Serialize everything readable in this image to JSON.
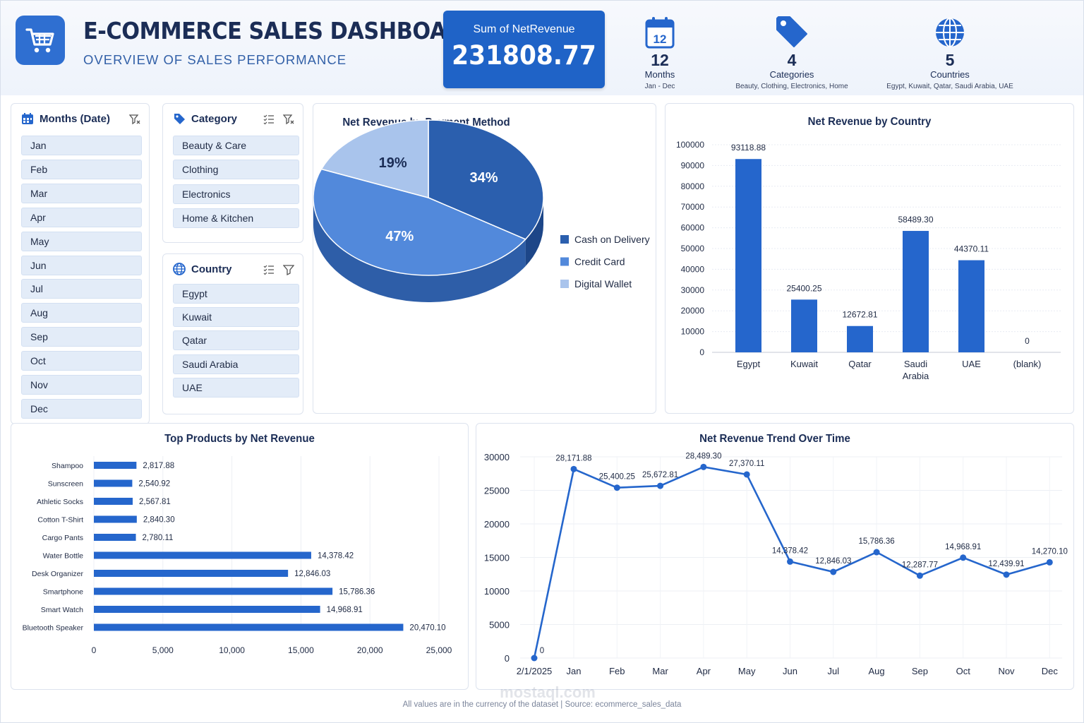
{
  "header": {
    "title": "E-COMMERCE SALES DASHBOARD",
    "subtitle": "OVERVIEW OF SALES PERFORMANCE",
    "logo_icon": "shopping-cart-icon"
  },
  "kpi": {
    "label": "Sum of NetRevenue",
    "value": "231808.77"
  },
  "stats": [
    {
      "icon": "calendar-icon",
      "icon_text": "12",
      "value": "12",
      "name": "Months",
      "sub": "Jan - Dec"
    },
    {
      "icon": "tag-icon",
      "value": "4",
      "name": "Categories",
      "sub": "Beauty, Clothing, Electronics, Home"
    },
    {
      "icon": "globe-icon",
      "value": "5",
      "name": "Countries",
      "sub": "Egypt, Kuwait, Qatar, Saudi Arabia, UAE"
    }
  ],
  "slicers": {
    "months": {
      "title": "Months (Date)",
      "items": [
        "Jan",
        "Feb",
        "Mar",
        "Apr",
        "May",
        "Jun",
        "Jul",
        "Aug",
        "Sep",
        "Oct",
        "Nov",
        "Dec"
      ]
    },
    "category": {
      "title": "Category",
      "items": [
        "Beauty & Care",
        "Clothing",
        "Electronics",
        "Home & Kitchen"
      ]
    },
    "country": {
      "title": "Country",
      "items": [
        "Egypt",
        "Kuwait",
        "Qatar",
        "Saudi Arabia",
        "UAE"
      ]
    }
  },
  "colors": {
    "primary": "#1f63c7",
    "bar": "#2566cc",
    "dark": "#1b2d56",
    "pie_cash": "#2b5fae",
    "pie_card": "#5289db",
    "pie_wallet": "#a9c4ec"
  },
  "chart_data": [
    {
      "type": "pie",
      "title": "Net Revenue by Payment Method",
      "slices": [
        {
          "label": "Cash on Delivery",
          "value": 34,
          "text": "34%"
        },
        {
          "label": "Credit Card",
          "value": 47,
          "text": "47%"
        },
        {
          "label": "Digital Wallet",
          "value": 19,
          "text": "19%"
        }
      ],
      "legend": "right"
    },
    {
      "type": "bar",
      "title": "Net Revenue by Country",
      "categories": [
        "Egypt",
        "Kuwait",
        "Qatar",
        "Saudi Arabia",
        "UAE",
        "(blank)"
      ],
      "values": [
        93118.88,
        25400.25,
        12672.81,
        58489.3,
        44370.11,
        0
      ],
      "labels": [
        "93118.88",
        "25400.25",
        "12672.81",
        "58489.30",
        "44370.11",
        "0"
      ],
      "ylim": [
        0,
        100000
      ],
      "yticks": [
        "0",
        "10000",
        "20000",
        "30000",
        "40000",
        "50000",
        "60000",
        "70000",
        "80000",
        "90000",
        "100000"
      ],
      "grid": true
    },
    {
      "type": "bar",
      "orientation": "horizontal",
      "title": "Top Products by Net Revenue",
      "categories": [
        "Shampoo",
        "Sunscreen",
        "Athletic Socks",
        "Cotton T-Shirt",
        "Cargo Pants",
        "Water Bottle",
        "Desk Organizer",
        "Smartphone",
        "Smart Watch",
        "Bluetooth Speaker"
      ],
      "values": [
        2817.88,
        2540.92,
        2567.81,
        2840.3,
        2780.11,
        14378.42,
        12846.03,
        15786.36,
        14968.91,
        20470.1
      ],
      "labels": [
        "2,817.88",
        "2,540.92",
        "2,567.81",
        "2,840.30",
        "2,780.11",
        "14,378.42",
        "12,846.03",
        "15,786.36",
        "14,968.91",
        "20,470.10"
      ],
      "xlim": [
        0,
        25000
      ],
      "xticks": [
        "0",
        "5,000",
        "10,000",
        "15,000",
        "20,000",
        "25,000"
      ],
      "grid": true
    },
    {
      "type": "line",
      "title": "Net Revenue Trend Over Time",
      "categories": [
        "2/1/2025",
        "Jan",
        "Feb",
        "Mar",
        "Apr",
        "May",
        "Jun",
        "Jul",
        "Aug",
        "Sep",
        "Oct",
        "Nov",
        "Dec"
      ],
      "values": [
        0,
        28171.88,
        25400.25,
        25672.81,
        28489.3,
        27370.11,
        14378.42,
        12846.03,
        15786.36,
        12287.77,
        14968.91,
        12439.91,
        14270.1
      ],
      "labels": [
        "0",
        "28,171.88",
        "25,400.25",
        "25,672.81",
        "28,489.30",
        "27,370.11",
        "14,378.42",
        "12,846.03",
        "15,786.36",
        "12,287.77",
        "14,968.91",
        "12,439.91",
        "14,270.10"
      ],
      "ylim": [
        0,
        30000
      ],
      "yticks": [
        "0",
        "5000",
        "10000",
        "15000",
        "20000",
        "25000",
        "30000"
      ],
      "grid": true
    }
  ],
  "footer": "All values are in the currency of the dataset  |  Source: ecommerce_sales_data",
  "watermark": {
    "text": "mostaql.com"
  }
}
